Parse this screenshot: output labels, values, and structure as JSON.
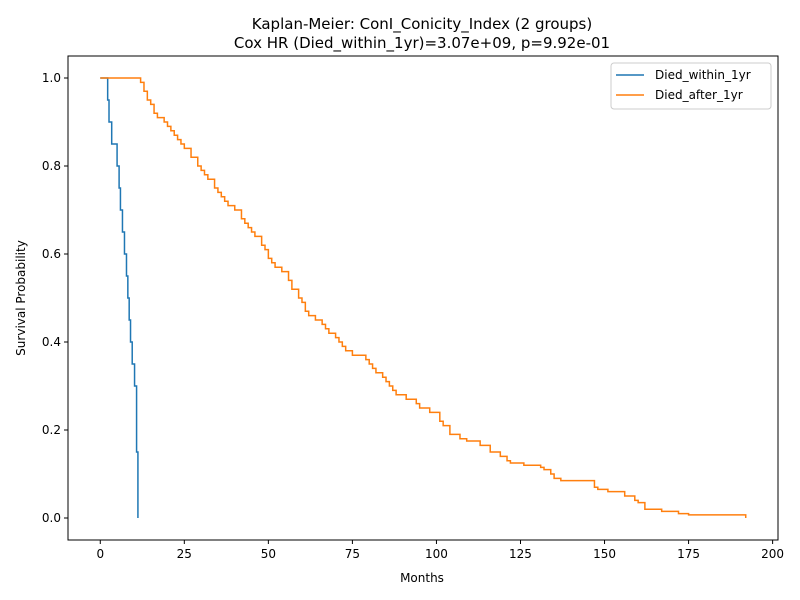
{
  "chart_data": {
    "type": "line",
    "title": "Kaplan-Meier: ConI_Conicity_Index (2 groups)",
    "subtitle": "Cox HR (Died_within_1yr)=3.07e+09, p=9.92e-01",
    "xlabel": "Months",
    "ylabel": "Survival Probability",
    "xlim": [
      -9.6,
      201.6
    ],
    "ylim": [
      -0.05,
      1.05
    ],
    "xticks": [
      0,
      25,
      50,
      75,
      100,
      125,
      150,
      175,
      200
    ],
    "yticks": [
      0.0,
      0.2,
      0.4,
      0.6,
      0.8,
      1.0
    ],
    "grid": false,
    "legend_position": "top-right",
    "step": true,
    "series": [
      {
        "name": "Died_within_1yr",
        "color": "#1f77b4",
        "x": [
          0,
          2.2,
          2.6,
          3.4,
          5.0,
          5.6,
          6.0,
          6.6,
          7.2,
          7.8,
          8.2,
          8.6,
          9.0,
          9.5,
          10.2,
          10.8,
          11.2
        ],
        "y": [
          1.0,
          0.95,
          0.9,
          0.85,
          0.8,
          0.75,
          0.7,
          0.65,
          0.6,
          0.55,
          0.5,
          0.45,
          0.4,
          0.35,
          0.3,
          0.15,
          0.0
        ]
      },
      {
        "name": "Died_after_1yr",
        "color": "#ff7f0e",
        "x": [
          0,
          12,
          13,
          14,
          15,
          16,
          17,
          19,
          20,
          21,
          22,
          23,
          24,
          25,
          27,
          29,
          30,
          31,
          32,
          34,
          35,
          36,
          37,
          38,
          40,
          42,
          43,
          44,
          45,
          46,
          48,
          49,
          50,
          51,
          52,
          54,
          56,
          57,
          59,
          60,
          61,
          62,
          64,
          66,
          67,
          68,
          70,
          71,
          72,
          73,
          75,
          79,
          80,
          81,
          82,
          84,
          85,
          86,
          87,
          88,
          91,
          94,
          95,
          98,
          101,
          102,
          104,
          107,
          109,
          113,
          116,
          119,
          121,
          122,
          126,
          131,
          132,
          134,
          135,
          137,
          147,
          148,
          151,
          156,
          159,
          160,
          162,
          167,
          172,
          175,
          192
        ],
        "y": [
          1.0,
          0.99,
          0.97,
          0.95,
          0.94,
          0.92,
          0.91,
          0.9,
          0.89,
          0.88,
          0.87,
          0.86,
          0.85,
          0.84,
          0.82,
          0.8,
          0.79,
          0.78,
          0.77,
          0.75,
          0.74,
          0.73,
          0.72,
          0.71,
          0.7,
          0.68,
          0.67,
          0.66,
          0.65,
          0.64,
          0.62,
          0.61,
          0.59,
          0.58,
          0.57,
          0.56,
          0.54,
          0.52,
          0.5,
          0.49,
          0.47,
          0.46,
          0.45,
          0.44,
          0.43,
          0.42,
          0.41,
          0.4,
          0.39,
          0.38,
          0.37,
          0.36,
          0.35,
          0.34,
          0.33,
          0.32,
          0.31,
          0.3,
          0.29,
          0.28,
          0.27,
          0.26,
          0.25,
          0.24,
          0.22,
          0.21,
          0.19,
          0.18,
          0.175,
          0.165,
          0.15,
          0.14,
          0.13,
          0.125,
          0.12,
          0.115,
          0.11,
          0.1,
          0.09,
          0.085,
          0.07,
          0.065,
          0.06,
          0.05,
          0.04,
          0.035,
          0.02,
          0.015,
          0.01,
          0.007,
          0.0
        ]
      }
    ]
  }
}
